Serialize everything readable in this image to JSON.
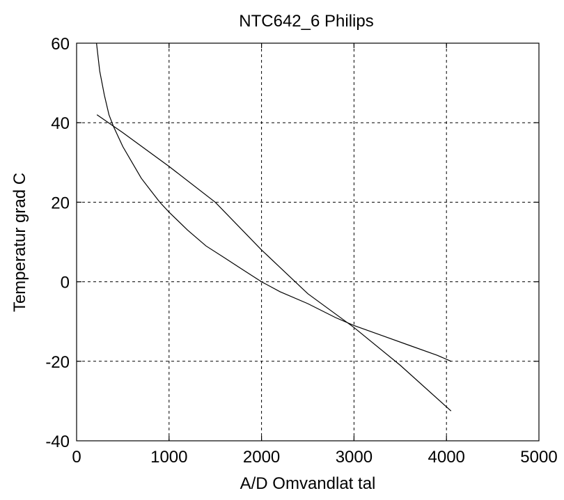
{
  "chart_data": {
    "type": "line",
    "title": "NTC642_6 Philips",
    "xlabel": "A/D Omvandlat tal",
    "ylabel": "Temperatur grad C",
    "xlim": [
      0,
      5000
    ],
    "ylim": [
      -40,
      60
    ],
    "xticks": [
      0,
      1000,
      2000,
      3000,
      4000,
      5000
    ],
    "yticks": [
      -40,
      -20,
      0,
      20,
      40,
      60
    ],
    "xtick_labels": [
      "0",
      "1000",
      "2000",
      "3000",
      "4000",
      "5000"
    ],
    "ytick_labels": [
      "-40",
      "-20",
      "0",
      "20",
      "40",
      "60"
    ],
    "grid": true,
    "series": [
      {
        "points": [
          [
            215,
            60
          ],
          [
            250,
            53
          ],
          [
            300,
            47
          ],
          [
            350,
            42
          ],
          [
            400,
            39
          ],
          [
            500,
            34
          ],
          [
            600,
            30
          ],
          [
            700,
            26
          ],
          [
            800,
            23
          ],
          [
            900,
            20
          ],
          [
            1000,
            17.5
          ],
          [
            1200,
            13
          ],
          [
            1400,
            9
          ],
          [
            1600,
            6
          ],
          [
            1800,
            3
          ],
          [
            2000,
            0
          ],
          [
            2200,
            -2.5
          ],
          [
            2500,
            -5.5
          ],
          [
            2800,
            -9
          ],
          [
            3000,
            -11
          ],
          [
            3300,
            -13.5
          ],
          [
            3600,
            -16
          ],
          [
            3900,
            -18.5
          ],
          [
            4050,
            -20
          ]
        ]
      },
      {
        "points": [
          [
            220,
            42
          ],
          [
            500,
            37.5
          ],
          [
            1000,
            29
          ],
          [
            1500,
            20
          ],
          [
            2000,
            8
          ],
          [
            2500,
            -3
          ],
          [
            3000,
            -11.5
          ],
          [
            3500,
            -21
          ],
          [
            4050,
            -32.5
          ]
        ]
      }
    ]
  }
}
